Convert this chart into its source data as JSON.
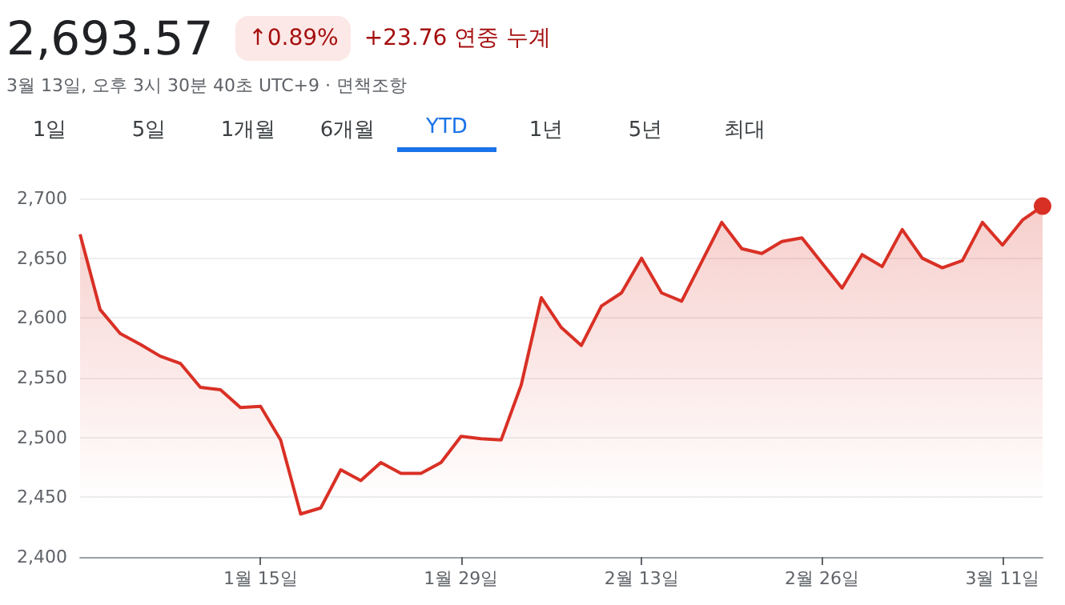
{
  "chart_data": {
    "type": "area",
    "title": "2,693.57",
    "subtitle": "3월 13일, 오후 3시 30분 40초 UTC+9 · 면책조항",
    "annotations": [
      "↑0.89%",
      "+23.76 연중 누계",
      "1일",
      "5일",
      "1개월",
      "6개월",
      "YTD",
      "1년",
      "5년",
      "최대"
    ],
    "categories": [
      null,
      null,
      null,
      null,
      null,
      null,
      null,
      null,
      null,
      "1월 15일",
      null,
      null,
      null,
      null,
      null,
      null,
      null,
      null,
      null,
      "1월 29일",
      null,
      null,
      null,
      null,
      null,
      null,
      null,
      null,
      "2월 13일",
      null,
      null,
      null,
      null,
      null,
      null,
      null,
      null,
      "2월 26일",
      null,
      null,
      null,
      null,
      null,
      null,
      null,
      null,
      "3월 11일",
      null,
      null
    ],
    "series": [
      {
        "color": "#d93025",
        "values": [
          2670,
          2607,
          2587,
          2578,
          2568,
          2562,
          2542,
          2540,
          2525,
          2526,
          2498,
          2436,
          2441,
          2473,
          2464,
          2479,
          2470,
          2470,
          2479,
          2501,
          2499,
          2498,
          2544,
          2617,
          2592,
          2577,
          2610,
          2621,
          2650,
          2621,
          2614,
          2647,
          2680,
          2658,
          2654,
          2664,
          2667,
          2646,
          2625,
          2653,
          2643,
          2674,
          2650,
          2642,
          2648,
          2680,
          2661,
          2682,
          2693.57
        ]
      }
    ],
    "ylim": [
      2400,
      2700
    ],
    "yticks": [
      {
        "value": 2400,
        "label": "2,400"
      },
      {
        "value": 2450,
        "label": "2,450"
      },
      {
        "value": 2500,
        "label": "2,500"
      },
      {
        "value": 2550,
        "label": "2,550"
      },
      {
        "value": 2600,
        "label": "2,600"
      },
      {
        "value": 2650,
        "label": "2,650"
      },
      {
        "value": 2700,
        "label": "2,700"
      }
    ],
    "grid": "y",
    "marker": "none",
    "line_style": "solid"
  }
}
